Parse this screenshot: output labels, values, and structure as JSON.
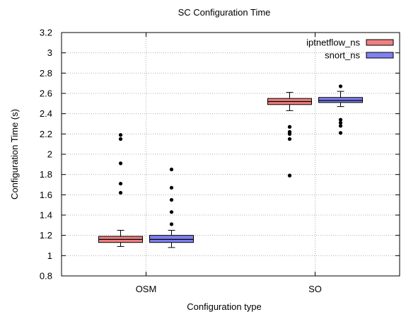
{
  "chart_data": {
    "type": "box",
    "title": "SC Configuration Time",
    "xlabel": "Configuration type",
    "ylabel": "Configuration Time (s)",
    "ylim": [
      0.8,
      3.2
    ],
    "yticks": [
      "0.8",
      "1",
      "1.2",
      "1.4",
      "1.6",
      "1.8",
      "2",
      "2.2",
      "2.4",
      "2.6",
      "2.8",
      "3",
      "3.2"
    ],
    "categories": [
      "OSM",
      "SO"
    ],
    "grid": true,
    "legend_position": "top-right",
    "series": [
      {
        "name": "iptnetflow_ns",
        "color": "#f08080",
        "boxes": [
          {
            "whisker_low": 1.09,
            "q1": 1.13,
            "median": 1.16,
            "q3": 1.19,
            "whisker_high": 1.25,
            "outliers": [
              2.19,
              2.15,
              1.91,
              1.71,
              1.62
            ]
          },
          {
            "whisker_low": 2.43,
            "q1": 2.49,
            "median": 2.52,
            "q3": 2.55,
            "whisker_high": 2.61,
            "outliers": [
              2.27,
              2.27,
              2.22,
              2.22,
              2.2,
              2.2,
              2.15,
              1.79,
              1.79
            ]
          }
        ]
      },
      {
        "name": "snort_ns",
        "color": "#8080f0",
        "boxes": [
          {
            "whisker_low": 1.08,
            "q1": 1.13,
            "median": 1.16,
            "q3": 1.2,
            "whisker_high": 1.25,
            "outliers": [
              1.85,
              1.67,
              1.55,
              1.43,
              1.31
            ]
          },
          {
            "whisker_low": 2.47,
            "q1": 2.51,
            "median": 2.53,
            "q3": 2.56,
            "whisker_high": 2.62,
            "outliers": [
              2.67,
              2.34,
              2.31,
              2.28,
              2.21
            ]
          }
        ]
      }
    ]
  }
}
